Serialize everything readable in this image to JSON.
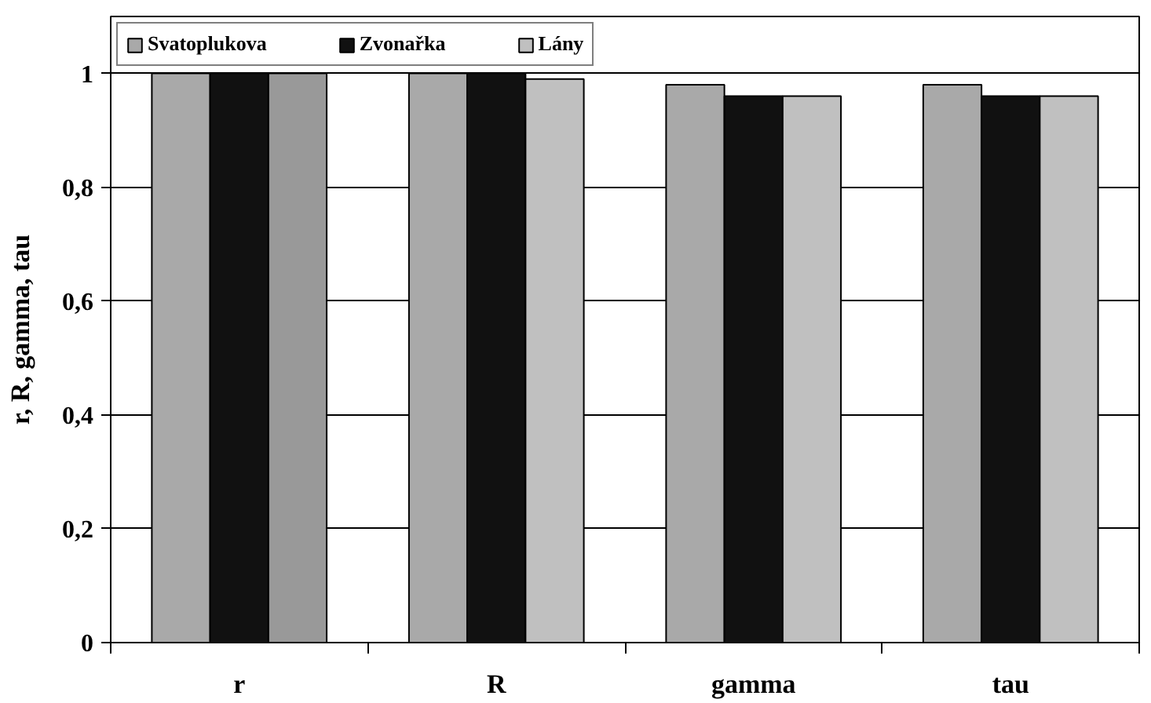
{
  "chart_data": {
    "type": "bar",
    "ylabel": "r, R, gamma, tau",
    "categories": [
      "r",
      "R",
      "gamma",
      "tau"
    ],
    "series": [
      {
        "name": "Svatoplukova",
        "color": "#a9a9a9",
        "values": [
          1,
          1,
          0.98,
          0.98
        ]
      },
      {
        "name": "Zvonařka",
        "color": "#111111",
        "values": [
          1,
          1,
          0.96,
          0.96
        ]
      },
      {
        "name": "Lány",
        "color": "#c0c0c0",
        "colors": [
          "#999999",
          "#c0c0c0",
          "#c0c0c0",
          "#c0c0c0"
        ],
        "values": [
          1,
          0.99,
          0.96,
          0.96
        ]
      }
    ],
    "ylim": [
      0,
      1.1
    ],
    "yticks": [
      0,
      {
        "value": 0.2,
        "label": "0,2"
      },
      {
        "value": 0.4,
        "label": "0,4"
      },
      {
        "value": 0.6,
        "label": "0,6"
      },
      {
        "value": 0.8,
        "label": "0,8"
      },
      1
    ],
    "grid": "y",
    "legend": "top left"
  }
}
